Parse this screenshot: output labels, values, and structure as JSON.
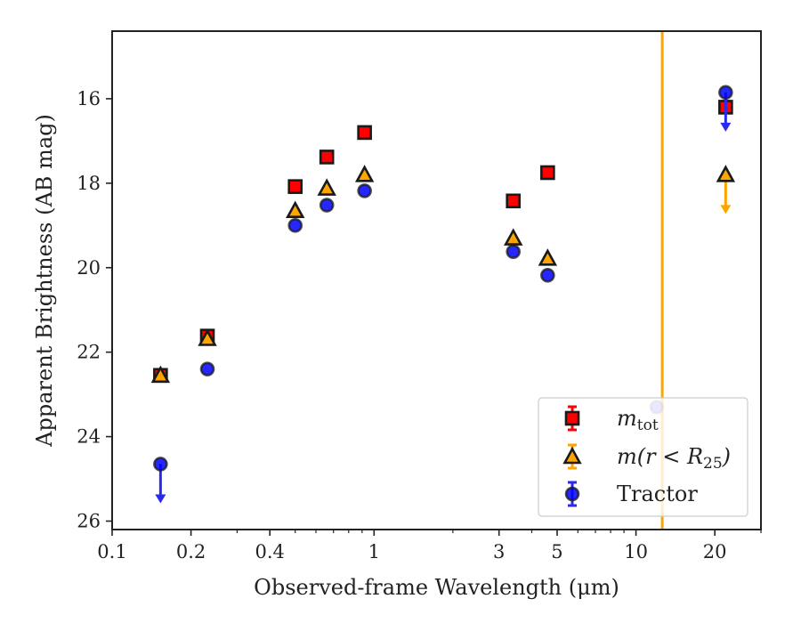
{
  "chart_data": {
    "type": "scatter",
    "xscale": "log",
    "xlim": [
      0.1,
      30
    ],
    "ylim": [
      26.2,
      14.4
    ],
    "y_inverted": true,
    "xlabel": "Observed-frame Wavelength (μm)",
    "ylabel": "Apparent Brightness (AB mag)",
    "x_ticks": [
      {
        "value": 0.1,
        "label": "0.1"
      },
      {
        "value": 0.2,
        "label": "0.2"
      },
      {
        "value": 0.4,
        "label": "0.4"
      },
      {
        "value": 1,
        "label": "1"
      },
      {
        "value": 3,
        "label": "3"
      },
      {
        "value": 5,
        "label": "5"
      },
      {
        "value": 10,
        "label": "10"
      },
      {
        "value": 20,
        "label": "20"
      }
    ],
    "y_ticks": [
      {
        "value": 16,
        "label": "16"
      },
      {
        "value": 18,
        "label": "18"
      },
      {
        "value": 20,
        "label": "20"
      },
      {
        "value": 22,
        "label": "22"
      },
      {
        "value": 24,
        "label": "24"
      },
      {
        "value": 26,
        "label": "26"
      }
    ],
    "vertical_line": {
      "x": 12.6,
      "color": "#FFA500"
    },
    "legend_position": "lower right",
    "series": [
      {
        "name": "m_tot",
        "marker": "square",
        "color": "#ff0000",
        "points": [
          {
            "x": 0.153,
            "y": 22.55
          },
          {
            "x": 0.231,
            "y": 21.62
          },
          {
            "x": 0.5,
            "y": 18.08
          },
          {
            "x": 0.66,
            "y": 17.38
          },
          {
            "x": 0.92,
            "y": 16.8
          },
          {
            "x": 3.4,
            "y": 18.42
          },
          {
            "x": 4.6,
            "y": 17.75
          },
          {
            "x": 22.0,
            "y": 16.2
          }
        ]
      },
      {
        "name": "m(r<R25)",
        "marker": "triangle",
        "color": "#FFA500",
        "points": [
          {
            "x": 0.153,
            "y": 22.55
          },
          {
            "x": 0.231,
            "y": 21.68
          },
          {
            "x": 0.5,
            "y": 18.65
          },
          {
            "x": 0.66,
            "y": 18.12
          },
          {
            "x": 0.92,
            "y": 17.8
          },
          {
            "x": 3.4,
            "y": 19.3
          },
          {
            "x": 4.6,
            "y": 19.78
          },
          {
            "x": 22.0,
            "y": 17.8,
            "upper_limit": true
          }
        ]
      },
      {
        "name": "Tractor",
        "marker": "circle",
        "color": "#0000ff",
        "points": [
          {
            "x": 0.153,
            "y": 24.65,
            "upper_limit": true
          },
          {
            "x": 0.231,
            "y": 22.4
          },
          {
            "x": 0.5,
            "y": 19.0
          },
          {
            "x": 0.66,
            "y": 18.52
          },
          {
            "x": 0.92,
            "y": 18.18
          },
          {
            "x": 3.4,
            "y": 19.62
          },
          {
            "x": 4.6,
            "y": 20.18
          },
          {
            "x": 12.0,
            "y": 23.3
          },
          {
            "x": 22.0,
            "y": 15.85,
            "upper_limit": true
          }
        ]
      }
    ]
  },
  "legend": {
    "entries": [
      {
        "text_main": "m",
        "text_sub": "tot",
        "text_tail": ""
      },
      {
        "text_main": "m(r < R",
        "text_sub": "25",
        "text_tail": ")"
      },
      {
        "text_main": "Tractor",
        "text_sub": "",
        "text_tail": ""
      }
    ]
  }
}
